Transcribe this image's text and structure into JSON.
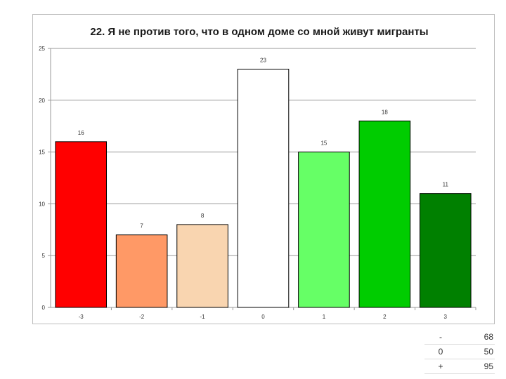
{
  "chart_data": {
    "type": "bar",
    "title": "22. Я не против того, что в одном доме со мной живут мигранты",
    "categories": [
      "-3",
      "-2",
      "-1",
      "0",
      "1",
      "2",
      "3"
    ],
    "values": [
      16,
      7,
      8,
      23,
      15,
      18,
      11
    ],
    "colors": [
      "#ff0000",
      "#ff9966",
      "#f9d5b0",
      "#ffffff",
      "#66ff66",
      "#00cc00",
      "#008000"
    ],
    "yticks": [
      "0",
      "5",
      "10",
      "15",
      "20",
      "25"
    ],
    "ylim": [
      0,
      25
    ],
    "grid": true,
    "legend": "none",
    "xlabel": "",
    "ylabel": ""
  },
  "summary": [
    {
      "label": "-",
      "value": "68"
    },
    {
      "label": "0",
      "value": "50"
    },
    {
      "label": "+",
      "value": "95"
    }
  ]
}
